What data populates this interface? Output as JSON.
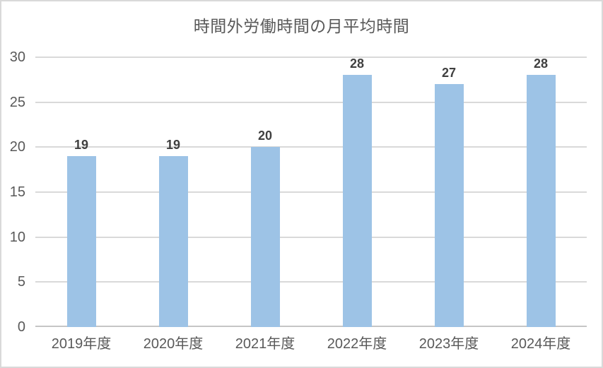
{
  "chart_data": {
    "type": "bar",
    "title": "時間外労働時間の月平均時間",
    "categories": [
      "2019年度",
      "2020年度",
      "2021年度",
      "2022年度",
      "2023年度",
      "2024年度"
    ],
    "values": [
      19,
      19,
      20,
      28,
      27,
      28
    ],
    "data_labels": [
      "19",
      "19",
      "20",
      "28",
      "27",
      "28"
    ],
    "xlabel": "",
    "ylabel": "",
    "ylim": [
      0,
      30
    ],
    "yticks": [
      0,
      5,
      10,
      15,
      20,
      25,
      30
    ],
    "grid": "horizontal",
    "legend": "none",
    "colors": {
      "bar_fill": "#9DC3E6",
      "title_text": "#595959",
      "axis_text": "#595959",
      "data_label_text": "#404040",
      "gridline": "#D9D9D9",
      "axis_line": "#C6C6C6",
      "background": "#FFFFFF",
      "border": "#D9D9D9"
    }
  }
}
